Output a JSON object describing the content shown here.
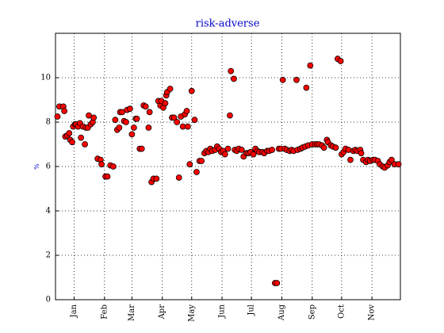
{
  "chart_data": {
    "type": "scatter",
    "title": "risk-adverse",
    "y_label": "%",
    "x": [
      -17,
      -15,
      -11,
      -10,
      -9,
      -7,
      -5,
      -4,
      -2,
      -1,
      1,
      2,
      4,
      6,
      7,
      9,
      11,
      12,
      14,
      15,
      17,
      19,
      20,
      24,
      27,
      28,
      32,
      34,
      37,
      40,
      42,
      44,
      46,
      47,
      49,
      51,
      53,
      54,
      57,
      59,
      61,
      63,
      64,
      67,
      69,
      71,
      73,
      76,
      77,
      79,
      81,
      84,
      86,
      88,
      89,
      91,
      93,
      94,
      95,
      98,
      100,
      102,
      105,
      107,
      109,
      111,
      113,
      115,
      116,
      118,
      120,
      123,
      125,
      128,
      130,
      133,
      135,
      137,
      139,
      141,
      144,
      146,
      148,
      150,
      152,
      154,
      157,
      159,
      160,
      163,
      164,
      166,
      168,
      171,
      173,
      176,
      178,
      180,
      183,
      185,
      187,
      189,
      192,
      194,
      197,
      199,
      202,
      205,
      207,
      209,
      211,
      213,
      215,
      217,
      220,
      222,
      224,
      227,
      228,
      231,
      233,
      236,
      237,
      239,
      241,
      243,
      246,
      248,
      250,
      253,
      255,
      258,
      259,
      262,
      264,
      267,
      269,
      272,
      273,
      275,
      277,
      280,
      282,
      285,
      287,
      289,
      292,
      293,
      295,
      298,
      300,
      302,
      305,
      307,
      310,
      312,
      315,
      317,
      320,
      322,
      324,
      327,
      331
    ],
    "values": [
      8.25,
      8.7,
      8.7,
      8.5,
      7.35,
      7.4,
      7.5,
      7.2,
      7.1,
      7.8,
      7.9,
      7.9,
      7.8,
      7.95,
      7.3,
      7.8,
      7.0,
      7.75,
      7.75,
      8.3,
      7.9,
      8.0,
      8.2,
      6.35,
      6.3,
      6.1,
      5.55,
      5.55,
      6.05,
      6.0,
      8.1,
      7.65,
      7.75,
      8.45,
      8.45,
      8.05,
      8.0,
      8.55,
      8.6,
      7.45,
      7.75,
      8.15,
      8.15,
      6.8,
      6.8,
      8.75,
      8.7,
      7.75,
      8.45,
      5.3,
      5.45,
      5.45,
      8.95,
      8.75,
      8.95,
      8.65,
      8.85,
      9.2,
      9.35,
      9.5,
      8.2,
      8.2,
      8.0,
      5.5,
      8.25,
      7.8,
      8.35,
      8.5,
      7.8,
      6.1,
      9.4,
      8.1,
      5.75,
      6.25,
      6.25,
      6.6,
      6.7,
      6.65,
      6.8,
      6.7,
      6.75,
      6.9,
      6.8,
      6.65,
      6.7,
      6.55,
      6.8,
      8.3,
      10.3,
      9.95,
      6.75,
      6.7,
      6.8,
      6.75,
      6.45,
      6.6,
      6.6,
      6.65,
      6.55,
      6.8,
      6.7,
      6.65,
      6.65,
      6.6,
      6.7,
      6.7,
      6.75,
      0.75,
      0.75,
      6.8,
      6.8,
      9.9,
      6.8,
      6.75,
      6.7,
      6.75,
      6.7,
      9.9,
      6.75,
      6.8,
      6.85,
      6.9,
      9.55,
      6.95,
      10.55,
      7.0,
      7.0,
      7.0,
      7.0,
      6.95,
      6.85,
      7.2,
      7.1,
      6.95,
      6.9,
      6.85,
      10.85,
      10.75,
      6.55,
      6.65,
      6.8,
      6.75,
      6.3,
      6.7,
      6.75,
      6.7,
      6.75,
      6.6,
      6.3,
      6.2,
      6.3,
      6.25,
      6.3,
      6.3,
      6.25,
      6.1,
      6.0,
      5.95,
      6.05,
      6.2,
      6.3,
      6.1,
      6.1
    ],
    "color": "#ff0000",
    "xlim": [
      -19,
      333
    ],
    "ylim": [
      0,
      12
    ],
    "xticks": [
      {
        "value": 0,
        "label": "Jan"
      },
      {
        "value": 31,
        "label": "Feb"
      },
      {
        "value": 59,
        "label": "Mar"
      },
      {
        "value": 90,
        "label": "Apr"
      },
      {
        "value": 120,
        "label": "May"
      },
      {
        "value": 151,
        "label": "Jun"
      },
      {
        "value": 181,
        "label": "Jul"
      },
      {
        "value": 212,
        "label": "Aug"
      },
      {
        "value": 243,
        "label": "Sep"
      },
      {
        "value": 273,
        "label": "Oct"
      },
      {
        "value": 304,
        "label": "Nov"
      }
    ],
    "yticks": [
      0,
      2,
      4,
      6,
      8,
      10
    ],
    "grid": true
  }
}
